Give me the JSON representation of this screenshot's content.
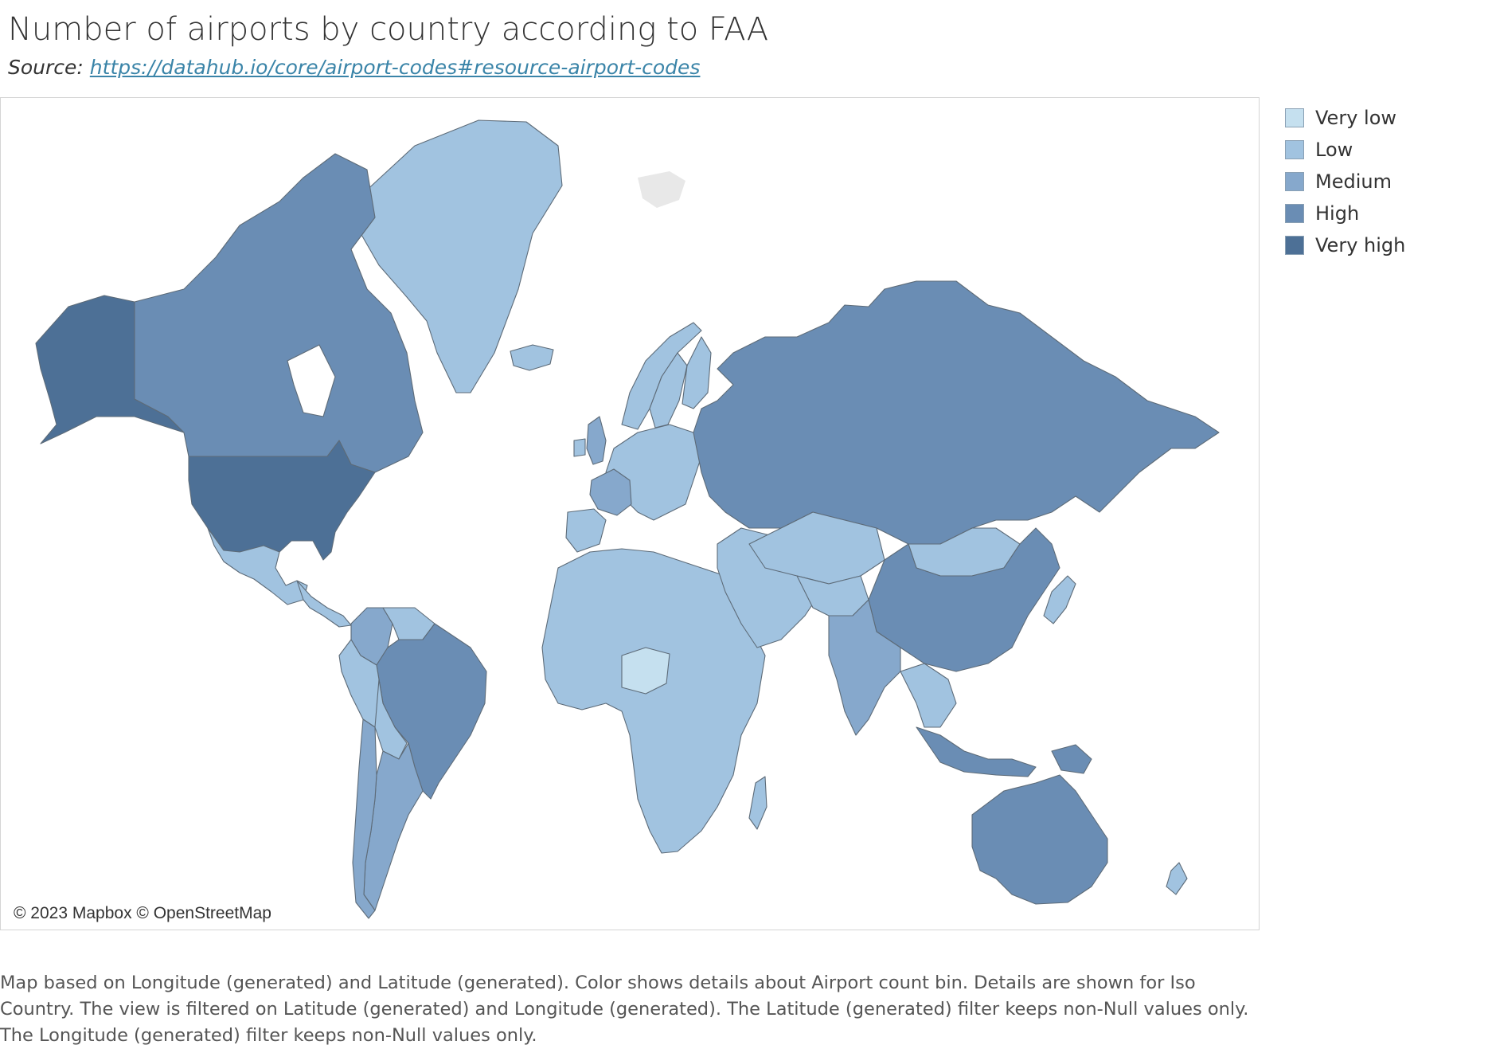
{
  "title": "Number of airports by country according to FAA",
  "source": {
    "prefix": "Source: ",
    "link_text": "https://datahub.io/core/airport-codes#resource-airport-codes"
  },
  "map": {
    "attribution": "© 2023 Mapbox © OpenStreetMap",
    "ocean_color": "#ffffff"
  },
  "legend": {
    "items": [
      {
        "label": "Very low",
        "color": "#c5e0ef"
      },
      {
        "label": "Low",
        "color": "#a1c3e0"
      },
      {
        "label": "Medium",
        "color": "#86a8cc"
      },
      {
        "label": "High",
        "color": "#6a8db4"
      },
      {
        "label": "Very high",
        "color": "#4d7096"
      }
    ]
  },
  "countries": [
    {
      "name": "United States",
      "bin": "Very high"
    },
    {
      "name": "Alaska (US)",
      "bin": "Very high"
    },
    {
      "name": "Canada",
      "bin": "High"
    },
    {
      "name": "Brazil",
      "bin": "High"
    },
    {
      "name": "Russia",
      "bin": "High"
    },
    {
      "name": "China",
      "bin": "High"
    },
    {
      "name": "Australia",
      "bin": "High"
    },
    {
      "name": "Indonesia",
      "bin": "High"
    },
    {
      "name": "Papua New Guinea",
      "bin": "High"
    },
    {
      "name": "Mexico",
      "bin": "Low"
    },
    {
      "name": "Argentina",
      "bin": "Medium"
    },
    {
      "name": "Colombia",
      "bin": "Medium"
    },
    {
      "name": "Bolivia",
      "bin": "Low"
    },
    {
      "name": "Peru",
      "bin": "Low"
    },
    {
      "name": "Chile",
      "bin": "Medium"
    },
    {
      "name": "Greenland",
      "bin": "Low"
    },
    {
      "name": "India",
      "bin": "Medium"
    },
    {
      "name": "Kazakhstan",
      "bin": "Low"
    },
    {
      "name": "Mongolia",
      "bin": "Low"
    },
    {
      "name": "Japan",
      "bin": "Low"
    },
    {
      "name": "New Zealand",
      "bin": "Low"
    },
    {
      "name": "Niger",
      "bin": "Very low"
    },
    {
      "name": "France",
      "bin": "Medium"
    },
    {
      "name": "United Kingdom",
      "bin": "Medium"
    },
    {
      "name": "Sweden",
      "bin": "Low"
    },
    {
      "name": "Norway",
      "bin": "Low"
    },
    {
      "name": "Finland",
      "bin": "Low"
    },
    {
      "name": "Africa (other)",
      "bin": "Low"
    },
    {
      "name": "Middle East",
      "bin": "Low"
    },
    {
      "name": "Europe (other)",
      "bin": "Low"
    }
  ],
  "caption": "Map based on Longitude (generated) and Latitude (generated).  Color shows details about Airport count bin.  Details are shown for Iso Country. The view is filtered on Latitude (generated) and Longitude (generated). The Latitude (generated) filter keeps non-Null values only. The Longitude (generated) filter keeps non-Null values only."
}
